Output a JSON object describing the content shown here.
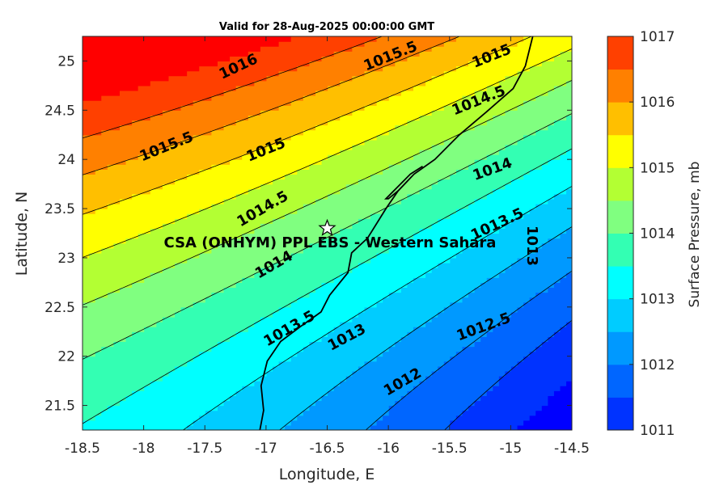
{
  "title": "Valid for 28-Aug-2025 00:00:00 GMT",
  "xlabel": "Longitude, E",
  "ylabel": "Latitude, N",
  "colorbar_label": "Surface Pressure, mb",
  "site_label": "CSA (ONHYM) PPL EBS  - Western Sahara",
  "site_marker": "star-icon",
  "x_ticks": [
    "-18.5",
    "-18",
    "-17.5",
    "-17",
    "-16.5",
    "-16",
    "-15.5",
    "-15",
    "-14.5"
  ],
  "y_ticks": [
    "25",
    "24.5",
    "24",
    "23.5",
    "23",
    "22.5",
    "22",
    "21.5"
  ],
  "colorbar_ticks": [
    "1017",
    "1016",
    "1015",
    "1014",
    "1013",
    "1012",
    "1011"
  ],
  "contour_labels": [
    "1016",
    "1015.5",
    "1015",
    "1015.5",
    "1015",
    "1014.5",
    "1015",
    "1014.5",
    "1014",
    "1014",
    "1013.5",
    "1013",
    "1013.5",
    "1013",
    "1012.5",
    "1012"
  ],
  "chart_data": {
    "type": "heatmap",
    "title": "Valid for 28-Aug-2025 00:00:00 GMT",
    "xlabel": "Longitude, E",
    "ylabel": "Latitude, N",
    "xlim": [
      -18.5,
      -14.5
    ],
    "ylim": [
      21.25,
      25.25
    ],
    "variable": "Surface Pressure, mb",
    "color_range": [
      1011,
      1017
    ],
    "contour_interval": 0.5,
    "levels": [
      1011,
      1011.5,
      1012,
      1012.5,
      1013,
      1013.5,
      1014,
      1014.5,
      1015,
      1015.5,
      1016,
      1016.5,
      1017
    ],
    "level_colors": [
      "#0000ff",
      "#0033ff",
      "#0066ff",
      "#0099ff",
      "#00ccff",
      "#00ffff",
      "#33ffb3",
      "#80ff80",
      "#b3ff33",
      "#ffff00",
      "#ffbf00",
      "#ff8000",
      "#ff4000",
      "#ff0000"
    ],
    "site": {
      "name": "CSA (ONHYM) PPL EBS  - Western Sahara",
      "lon": -16.5,
      "lat": 23.3
    },
    "grid": false
  }
}
